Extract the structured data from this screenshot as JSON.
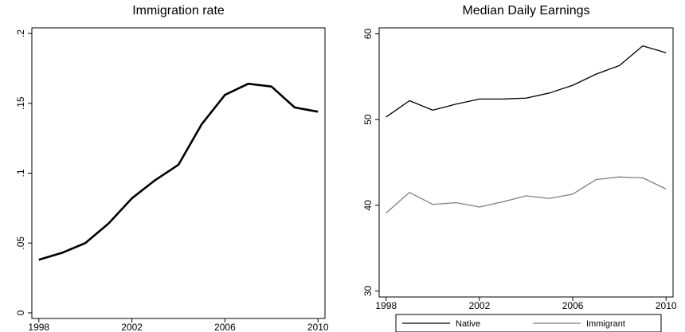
{
  "chart_data": [
    {
      "type": "line",
      "title": "Immigration rate",
      "x": [
        1998,
        1999,
        2000,
        2001,
        2002,
        2003,
        2004,
        2005,
        2006,
        2007,
        2008,
        2009,
        2010
      ],
      "series": [
        {
          "color": "#000000",
          "values": [
            0.038,
            0.043,
            0.05,
            0.064,
            0.082,
            0.095,
            0.106,
            0.135,
            0.156,
            0.164,
            0.162,
            0.147,
            0.144
          ]
        }
      ],
      "xlim": [
        1997.7,
        2010.3
      ],
      "xticks": [
        1998,
        2002,
        2006,
        2010
      ],
      "ylim": [
        -0.004,
        0.204
      ],
      "yticks": [
        0,
        {
          "value": 0.05,
          "label": ".05"
        },
        {
          "value": 0.1,
          "label": ".1"
        },
        {
          "value": 0.15,
          "label": ".15"
        },
        {
          "value": 0.2,
          "label": ".2"
        }
      ]
    },
    {
      "type": "line",
      "title": "Median Daily Earnings",
      "x": [
        1998,
        1999,
        2000,
        2001,
        2002,
        2003,
        2004,
        2005,
        2006,
        2007,
        2008,
        2009,
        2010
      ],
      "series": [
        {
          "name": "Native",
          "color": "#000000",
          "values": [
            50.3,
            52.2,
            51.1,
            51.8,
            52.4,
            52.4,
            52.5,
            53.1,
            54.0,
            55.3,
            56.3,
            58.6,
            57.8
          ]
        },
        {
          "name": "Immigrant",
          "color": "#808080",
          "values": [
            39.1,
            41.5,
            40.1,
            40.3,
            39.8,
            40.4,
            41.1,
            40.8,
            41.3,
            43.0,
            43.3,
            43.2,
            41.9
          ]
        }
      ],
      "xlim": [
        1997.7,
        2010.3
      ],
      "xticks": [
        1998,
        2002,
        2006,
        2010
      ],
      "ylim": [
        29.3,
        60.7
      ],
      "yticks": [
        30,
        40,
        50,
        60
      ],
      "legend": "bottom"
    }
  ]
}
